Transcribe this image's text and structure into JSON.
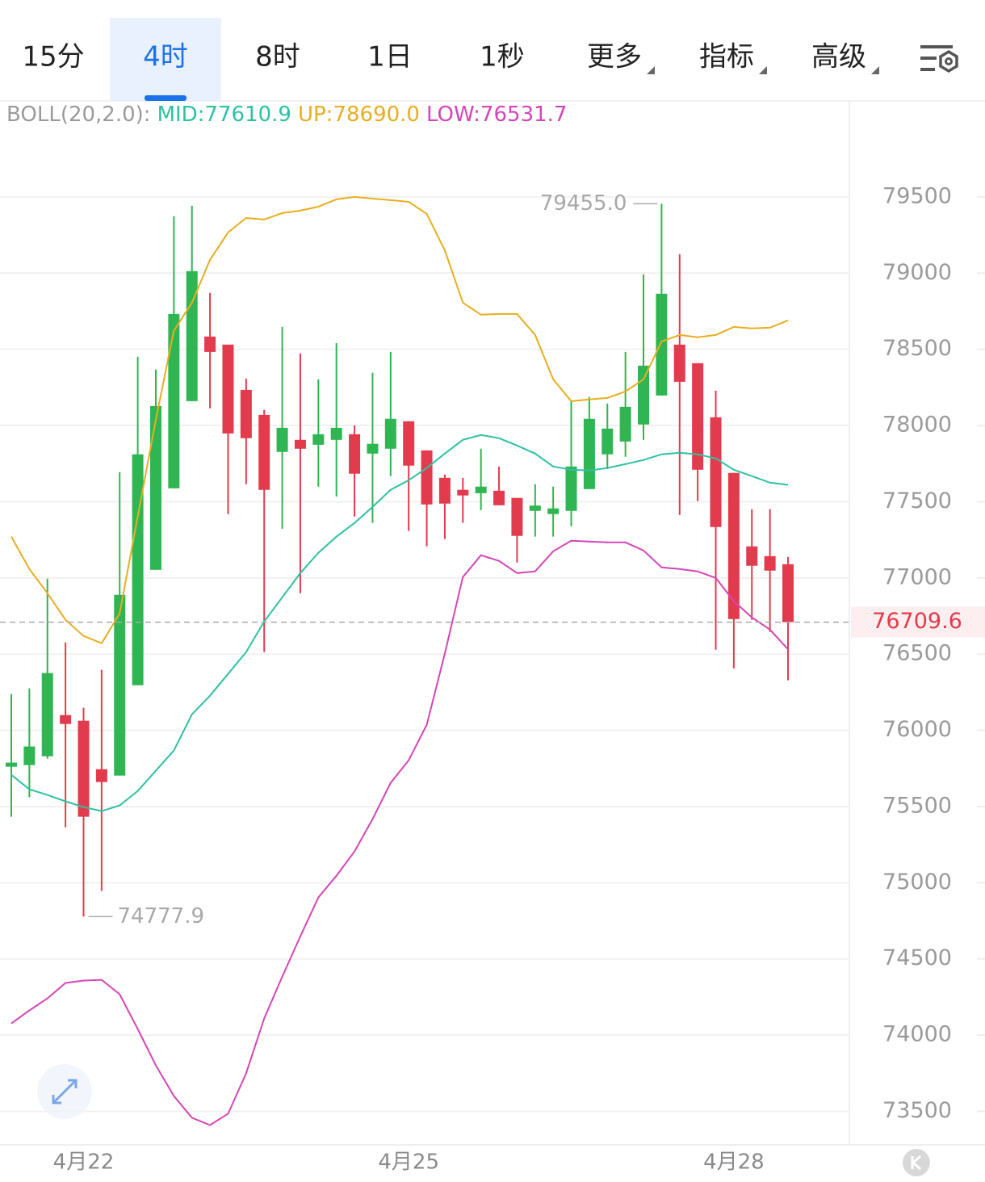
{
  "tabs": [
    "15分",
    "4时",
    "8时",
    "1日",
    "1秒",
    "更多",
    "指标",
    "高级"
  ],
  "active_tab": 1,
  "chart_data": {
    "type": "candlestick",
    "indicator_label": "BOLL(20,2.0):",
    "categories": [
      null,
      null,
      null,
      null,
      "4月22",
      null,
      null,
      null,
      null,
      null,
      null,
      null,
      null,
      null,
      null,
      null,
      null,
      null,
      null,
      null,
      null,
      null,
      "4月25",
      null,
      null,
      null,
      null,
      null,
      null,
      null,
      null,
      null,
      null,
      null,
      null,
      null,
      null,
      null,
      null,
      null,
      "4月28",
      null,
      null,
      null
    ],
    "open": [
      75761,
      75772,
      75830,
      76100,
      76063,
      75745,
      75703,
      76296,
      77053,
      77588,
      78160,
      78584,
      78531,
      78234,
      78070,
      77827,
      77906,
      77874,
      77906,
      77943,
      77816,
      77848,
      78028,
      77837,
      77657,
      77578,
      77556,
      77572,
      77525,
      77440,
      77419,
      77440,
      77583,
      77811,
      77895,
      78007,
      78197,
      78531,
      78409,
      78054,
      77689,
      77207,
      77143,
      77090
    ],
    "close": [
      75788,
      75894,
      76376,
      76042,
      75433,
      75661,
      76889,
      77811,
      78128,
      78732,
      79013,
      78483,
      77948,
      77917,
      77578,
      77985,
      77848,
      77943,
      77985,
      77684,
      77880,
      78044,
      77737,
      77482,
      77488,
      77541,
      77599,
      77477,
      77276,
      77475,
      77456,
      77731,
      78044,
      77980,
      78123,
      78393,
      78865,
      78287,
      77710,
      77334,
      76730,
      77080,
      77048,
      76709.6
    ],
    "high": [
      76238,
      76275,
      76995,
      76577,
      76148,
      76397,
      77694,
      78451,
      78367,
      79373,
      79442,
      78870,
      78531,
      78308,
      78102,
      78647,
      78473,
      78303,
      78541,
      78001,
      78346,
      78483,
      78028,
      77837,
      77678,
      77657,
      77848,
      77731,
      77525,
      77615,
      77599,
      78160,
      78187,
      78144,
      78483,
      78992,
      79455.0,
      79124,
      78409,
      78229,
      77689,
      77451,
      77451,
      77138
    ],
    "low": [
      75433,
      75560,
      75814,
      75364,
      74777.9,
      74946,
      75703,
      76296,
      77053,
      77588,
      78160,
      78113,
      77419,
      77615,
      76513,
      77323,
      76900,
      77599,
      77535,
      77403,
      77361,
      77668,
      77308,
      77207,
      77255,
      77361,
      77445,
      77477,
      77101,
      77271,
      77271,
      77339,
      77583,
      77715,
      77795,
      77906,
      78197,
      77413,
      77504,
      76529,
      76407,
      76725,
      76646,
      76328
    ],
    "up_color": "#2fb552",
    "down_color": "#e33b4e",
    "series": [
      {
        "name": "MID:77610.9",
        "color": "#2ec1a2",
        "values": [
          75708,
          75613,
          75576,
          75534,
          75496,
          75470,
          75507,
          75602,
          75735,
          75867,
          76105,
          76227,
          76370,
          76513,
          76714,
          76873,
          77032,
          77165,
          77271,
          77361,
          77466,
          77578,
          77641,
          77721,
          77816,
          77906,
          77938,
          77917,
          77869,
          77816,
          77731,
          77710,
          77705,
          77721,
          77747,
          77774,
          77811,
          77821,
          77811,
          77784,
          77710,
          77668,
          77625,
          77610.9
        ]
      },
      {
        "name": "UP:78690.0",
        "color": "#e8ae20",
        "values": [
          77271,
          77059,
          76900,
          76725,
          76619,
          76571,
          76767,
          77403,
          78038,
          78621,
          78806,
          79087,
          79267,
          79362,
          79352,
          79394,
          79410,
          79436,
          79484,
          79500,
          79489,
          79479,
          79468,
          79389,
          79150,
          78806,
          78727,
          78732,
          78732,
          78594,
          78303,
          78160,
          78171,
          78181,
          78224,
          78303,
          78552,
          78594,
          78579,
          78594,
          78647,
          78637,
          78642,
          78690.0
        ]
      },
      {
        "name": "LOW:76531.7",
        "color": "#d545b8",
        "values": [
          74077,
          74162,
          74241,
          74342,
          74358,
          74363,
          74268,
          74040,
          73802,
          73601,
          73458,
          73410,
          73484,
          73749,
          74109,
          74384,
          74649,
          74903,
          75046,
          75205,
          75417,
          75655,
          75804,
          76037,
          76503,
          77006,
          77149,
          77112,
          77032,
          77043,
          77175,
          77244,
          77239,
          77233,
          77233,
          77180,
          77069,
          77059,
          77043,
          77000,
          76847,
          76741,
          76661,
          76531.7
        ]
      }
    ],
    "high_label": {
      "value": 79455.0,
      "label": "79455.0"
    },
    "low_label": {
      "value": 74777.9,
      "label": "74777.9"
    },
    "last_price": {
      "value": 76709.6,
      "label": "76709.6"
    },
    "ylim": [
      73280,
      80130
    ],
    "yticks": [
      73500,
      74000,
      74500,
      75000,
      75500,
      76000,
      76500,
      77000,
      77500,
      78000,
      78500,
      79000,
      79500
    ],
    "grid": true
  }
}
